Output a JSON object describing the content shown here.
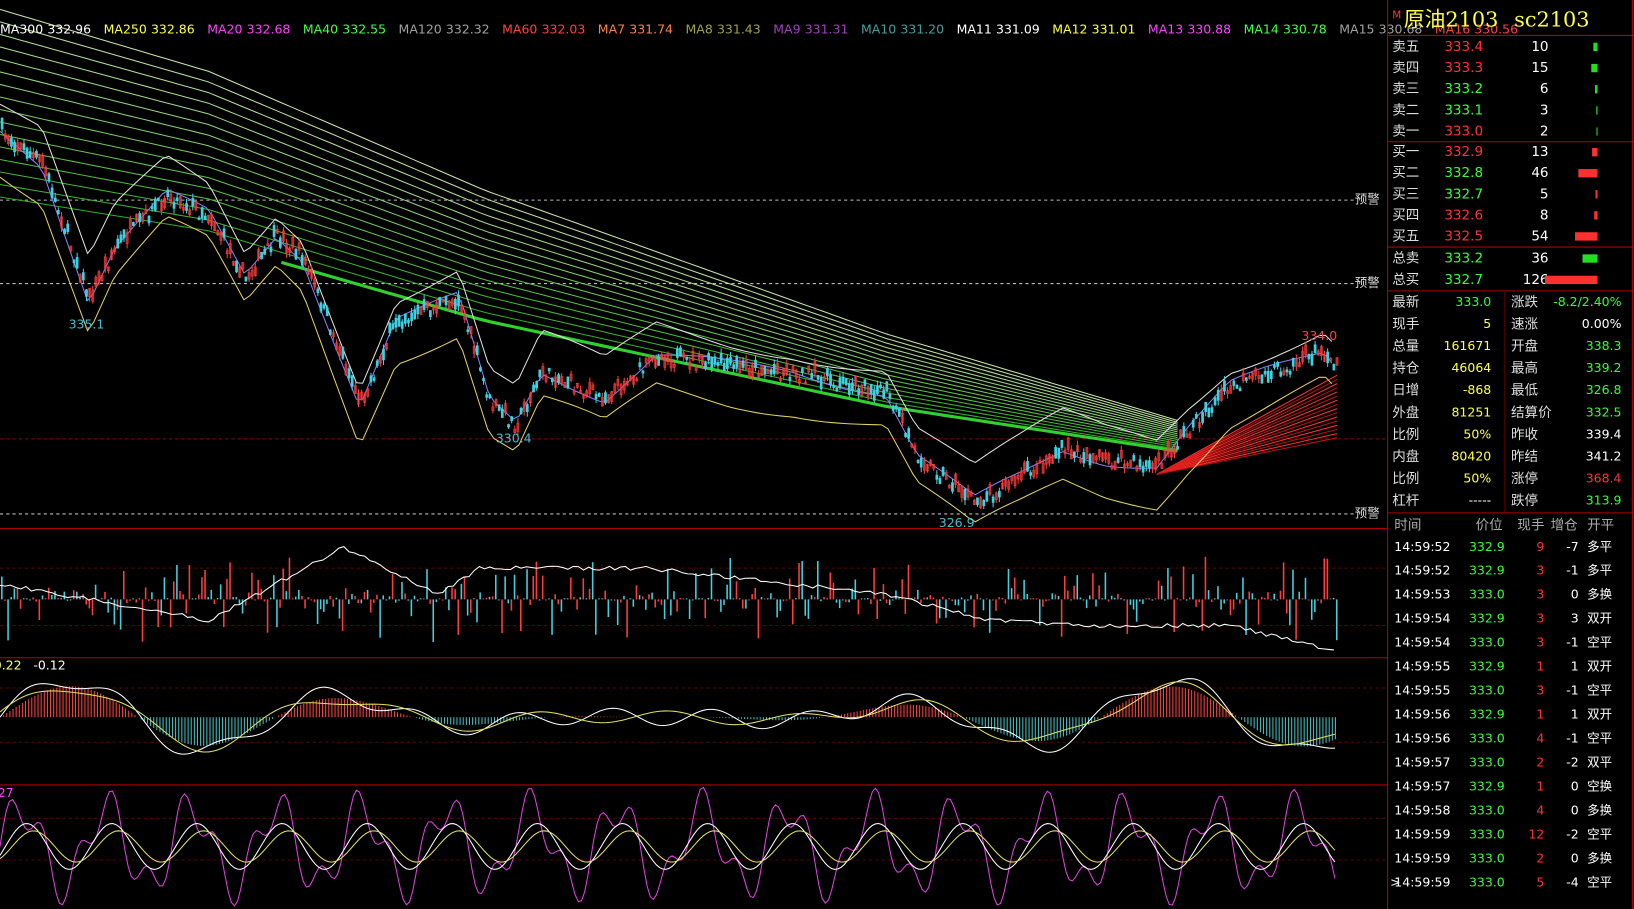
{
  "ma_legend": [
    {
      "name": "MA300",
      "value": "332.96",
      "color": "#ffffff"
    },
    {
      "name": "MA250",
      "value": "332.86",
      "color": "#ffff40"
    },
    {
      "name": "MA20",
      "value": "332.68",
      "color": "#ff40ff"
    },
    {
      "name": "MA40",
      "value": "332.55",
      "color": "#40ff40"
    },
    {
      "name": "MA120",
      "value": "332.32",
      "color": "#a0a0a0"
    },
    {
      "name": "MA60",
      "value": "332.03",
      "color": "#ff4040"
    },
    {
      "name": "MA7",
      "value": "331.74",
      "color": "#ff8040"
    },
    {
      "name": "MA8",
      "value": "331.43",
      "color": "#a0a040"
    },
    {
      "name": "MA9",
      "value": "331.31",
      "color": "#a040c0"
    },
    {
      "name": "MA10",
      "value": "331.20",
      "color": "#40a0a0"
    },
    {
      "name": "MA11",
      "value": "331.09",
      "color": "#ffffff"
    },
    {
      "name": "MA12",
      "value": "331.01",
      "color": "#ffff40"
    },
    {
      "name": "MA13",
      "value": "330.88",
      "color": "#ff40ff"
    },
    {
      "name": "MA14",
      "value": "330.78",
      "color": "#40ff40"
    },
    {
      "name": "MA15",
      "value": "330.68",
      "color": "#a0a0a0"
    },
    {
      "name": "MA16",
      "value": "330.56",
      "color": "#ff4040"
    }
  ],
  "price_marks": [
    {
      "text": "335.1",
      "color": "#40c0d0"
    },
    {
      "text": "330.4",
      "color": "#40c0d0"
    },
    {
      "text": "326.9",
      "color": "#40c0d0"
    },
    {
      "text": "334.0",
      "color": "#ff4040"
    }
  ],
  "alerts": [
    "预警",
    "预警",
    "预警"
  ],
  "indicator_labels": [
    {
      "text": "0.22",
      "color": "#ffff80"
    },
    {
      "text": "-0.12",
      "color": "#ffffff"
    },
    {
      "text": ".27",
      "color": "#ff40ff"
    }
  ],
  "quote_panel": {
    "title": "原油2103",
    "code": "sc2103",
    "asks": [
      {
        "label": "卖五",
        "price": "333.4",
        "volume": "10",
        "color": "#ff3232"
      },
      {
        "label": "卖四",
        "price": "333.3",
        "volume": "15",
        "color": "#ff3232"
      },
      {
        "label": "卖三",
        "price": "333.2",
        "volume": "6",
        "color": "#32ff32"
      },
      {
        "label": "卖二",
        "price": "333.1",
        "volume": "3",
        "color": "#32ff32"
      },
      {
        "label": "卖一",
        "price": "333.0",
        "volume": "2",
        "color": "#ff3232"
      }
    ],
    "bids": [
      {
        "label": "买一",
        "price": "332.9",
        "volume": "13",
        "color": "#ff3232"
      },
      {
        "label": "买二",
        "price": "332.8",
        "volume": "46",
        "color": "#32ff32"
      },
      {
        "label": "买三",
        "price": "332.7",
        "volume": "5",
        "color": "#32ff32"
      },
      {
        "label": "买四",
        "price": "332.6",
        "volume": "8",
        "color": "#ff3232"
      },
      {
        "label": "买五",
        "price": "332.5",
        "volume": "54",
        "color": "#ff3232"
      }
    ],
    "totals": [
      {
        "label": "总卖",
        "price": "333.2",
        "volume": "36",
        "color": "#32ff32"
      },
      {
        "label": "总买",
        "price": "332.7",
        "volume": "126",
        "color": "#32ff32"
      }
    ],
    "stats_left": [
      {
        "label": "最新",
        "value": "333.0",
        "color": "#32ff32"
      },
      {
        "label": "现手",
        "value": "5",
        "color": "#ffff40"
      },
      {
        "label": "总量",
        "value": "161671",
        "color": "#ffff40"
      },
      {
        "label": "持仓",
        "value": "46064",
        "color": "#ffff40"
      },
      {
        "label": "日增",
        "value": "-868",
        "color": "#ffff40"
      },
      {
        "label": "外盘",
        "value": "81251",
        "color": "#ffff40"
      },
      {
        "label": "比例",
        "value": "50%",
        "color": "#ffff40"
      },
      {
        "label": "内盘",
        "value": "80420",
        "color": "#ffff40"
      },
      {
        "label": "比例",
        "value": "50%",
        "color": "#ffff40"
      },
      {
        "label": "杠杆",
        "value": "-----",
        "color": "#ffffff"
      }
    ],
    "stats_right": [
      {
        "label": "涨跌",
        "value": "-8.2/2.40%",
        "color": "#32ff32"
      },
      {
        "label": "速涨",
        "value": "0.00%",
        "color": "#ffffff"
      },
      {
        "label": "开盘",
        "value": "338.3",
        "color": "#32ff32"
      },
      {
        "label": "最高",
        "value": "339.2",
        "color": "#32ff32"
      },
      {
        "label": "最低",
        "value": "326.8",
        "color": "#32ff32"
      },
      {
        "label": "结算价",
        "value": "332.5",
        "color": "#32ff32"
      },
      {
        "label": "昨收",
        "value": "339.4",
        "color": "#ffffff"
      },
      {
        "label": "昨结",
        "value": "341.2",
        "color": "#ffffff"
      },
      {
        "label": "涨停",
        "value": "368.4",
        "color": "#ff3232"
      },
      {
        "label": "跌停",
        "value": "313.9",
        "color": "#32ff32"
      }
    ]
  },
  "ticks": {
    "header": [
      "时间",
      "价位",
      "现手",
      "增仓",
      "开平"
    ],
    "rows": [
      [
        "14:59:52",
        "332.9",
        "9",
        "-7",
        "多平"
      ],
      [
        "14:59:52",
        "332.9",
        "3",
        "-1",
        "多平"
      ],
      [
        "14:59:53",
        "333.0",
        "3",
        "0",
        "多换"
      ],
      [
        "14:59:54",
        "332.9",
        "3",
        "3",
        "双开"
      ],
      [
        "14:59:54",
        "333.0",
        "3",
        "-1",
        "空平"
      ],
      [
        "14:59:55",
        "332.9",
        "1",
        "1",
        "双开"
      ],
      [
        "14:59:55",
        "333.0",
        "3",
        "-1",
        "空平"
      ],
      [
        "14:59:56",
        "332.9",
        "1",
        "1",
        "双开"
      ],
      [
        "14:59:56",
        "333.0",
        "4",
        "-1",
        "空平"
      ],
      [
        "14:59:57",
        "333.0",
        "2",
        "-2",
        "双平"
      ],
      [
        "14:59:57",
        "332.9",
        "1",
        "0",
        "空换"
      ],
      [
        "14:59:58",
        "333.0",
        "4",
        "0",
        "多换"
      ],
      [
        "14:59:59",
        "333.0",
        "12",
        "-2",
        "空平"
      ],
      [
        "14:59:59",
        "333.0",
        "2",
        "0",
        "多换"
      ],
      [
        "14:59:59",
        "333.0",
        "5",
        "-4",
        "空平"
      ]
    ]
  }
}
